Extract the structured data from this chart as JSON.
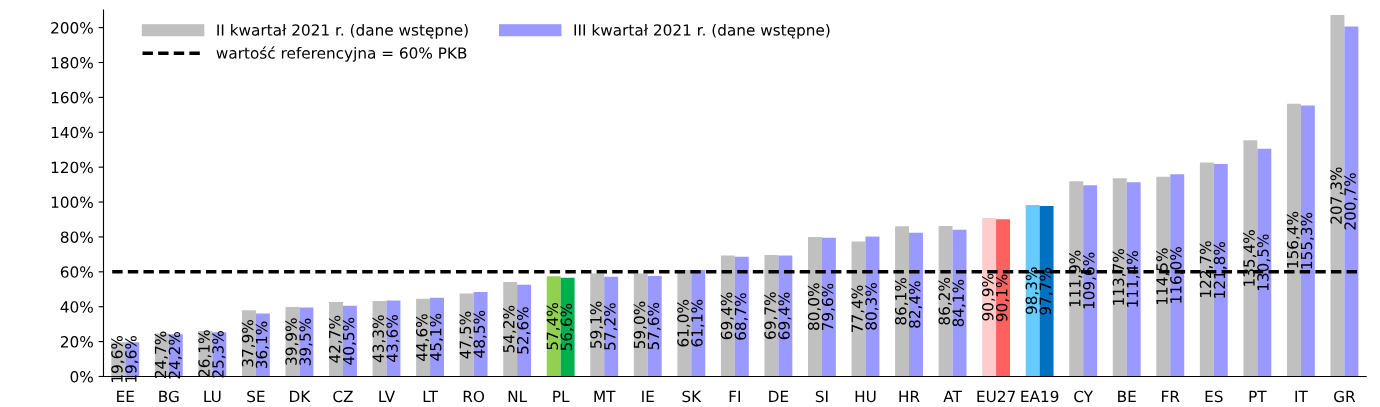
{
  "chart_data": {
    "type": "bar",
    "categories": [
      "EE",
      "BG",
      "LU",
      "SE",
      "DK",
      "CZ",
      "LV",
      "LT",
      "RO",
      "NL",
      "PL",
      "MT",
      "IE",
      "SK",
      "FI",
      "DE",
      "SI",
      "HU",
      "HR",
      "AT",
      "EU27",
      "EA19",
      "CY",
      "BE",
      "FR",
      "ES",
      "PT",
      "IT",
      "GR"
    ],
    "series": [
      {
        "name": "II kwartał 2021 r. (dane wstępne)",
        "color": "#c0c0c0",
        "colors": [
          "#c0c0c0",
          "#c0c0c0",
          "#c0c0c0",
          "#c0c0c0",
          "#c0c0c0",
          "#c0c0c0",
          "#c0c0c0",
          "#c0c0c0",
          "#c0c0c0",
          "#c0c0c0",
          "#92d050",
          "#c0c0c0",
          "#c0c0c0",
          "#c0c0c0",
          "#c0c0c0",
          "#c0c0c0",
          "#c0c0c0",
          "#c0c0c0",
          "#c0c0c0",
          "#c0c0c0",
          "#ffcccc",
          "#66ccff",
          "#c0c0c0",
          "#c0c0c0",
          "#c0c0c0",
          "#c0c0c0",
          "#c0c0c0",
          "#c0c0c0",
          "#c0c0c0"
        ],
        "values": [
          19.6,
          24.7,
          26.1,
          37.9,
          39.9,
          42.7,
          43.3,
          44.6,
          47.5,
          54.2,
          57.4,
          59.1,
          59.0,
          61.0,
          69.4,
          69.7,
          80.0,
          77.4,
          86.1,
          86.2,
          90.9,
          98.3,
          111.9,
          113.7,
          114.5,
          122.7,
          135.4,
          156.4,
          207.3
        ],
        "value_labels": [
          "19,6%",
          "24,7%",
          "26,1%",
          "37,9%",
          "39,9%",
          "42,7%",
          "43,3%",
          "44,6%",
          "47,5%",
          "54,2%",
          "57,4%",
          "59,1%",
          "59,0%",
          "61,0%",
          "69,4%",
          "69,7%",
          "80,0%",
          "77,4%",
          "86,1%",
          "86,2%",
          "90,9%",
          "98,3%",
          "111,9%",
          "113,7%",
          "114,5%",
          "122,7%",
          "135,4%",
          "156,4%",
          "207,3%"
        ]
      },
      {
        "name": "III kwartał 2021 r. (dane wstępne)",
        "color": "#9999ff",
        "colors": [
          "#9999ff",
          "#9999ff",
          "#9999ff",
          "#9999ff",
          "#9999ff",
          "#9999ff",
          "#9999ff",
          "#9999ff",
          "#9999ff",
          "#9999ff",
          "#00b050",
          "#9999ff",
          "#9999ff",
          "#9999ff",
          "#9999ff",
          "#9999ff",
          "#9999ff",
          "#9999ff",
          "#9999ff",
          "#9999ff",
          "#ff6161",
          "#0070c0",
          "#9999ff",
          "#9999ff",
          "#9999ff",
          "#9999ff",
          "#9999ff",
          "#9999ff",
          "#9999ff"
        ],
        "values": [
          19.6,
          24.2,
          25.3,
          36.1,
          39.5,
          40.5,
          43.6,
          45.1,
          48.5,
          52.6,
          56.6,
          57.2,
          57.6,
          61.1,
          68.7,
          69.4,
          79.6,
          80.3,
          82.4,
          84.1,
          90.1,
          97.7,
          109.6,
          111.4,
          116.0,
          121.8,
          130.5,
          155.3,
          200.7
        ],
        "value_labels": [
          "19,6%",
          "24,2%",
          "25,3%",
          "36,1%",
          "39,5%",
          "40,5%",
          "43,6%",
          "45,1%",
          "48,5%",
          "52,6%",
          "56,6%",
          "57,2%",
          "57,6%",
          "61,1%",
          "68,7%",
          "69,4%",
          "79,6%",
          "80,3%",
          "82,4%",
          "84,1%",
          "90,1%",
          "97,7%",
          "109,6%",
          "111,4%",
          "116,0%",
          "121,8%",
          "130,5%",
          "155,3%",
          "200,7%"
        ]
      }
    ],
    "ref_lines": [
      {
        "axis": "y",
        "value": 60,
        "label": "wartość referencyjna = 60% PKB",
        "color": "#000000",
        "line_style": "dashed"
      }
    ],
    "ylim": [
      0,
      210
    ],
    "yticks": [
      {
        "value": 0,
        "label": "0%"
      },
      {
        "value": 20,
        "label": "20%"
      },
      {
        "value": 40,
        "label": "40%"
      },
      {
        "value": 60,
        "label": "60%"
      },
      {
        "value": 80,
        "label": "80%"
      },
      {
        "value": 100,
        "label": "100%"
      },
      {
        "value": 120,
        "label": "120%"
      },
      {
        "value": 140,
        "label": "140%"
      },
      {
        "value": 160,
        "label": "160%"
      },
      {
        "value": 180,
        "label": "180%"
      },
      {
        "value": 200,
        "label": "200%"
      }
    ],
    "grid": false,
    "legend": "top left"
  }
}
